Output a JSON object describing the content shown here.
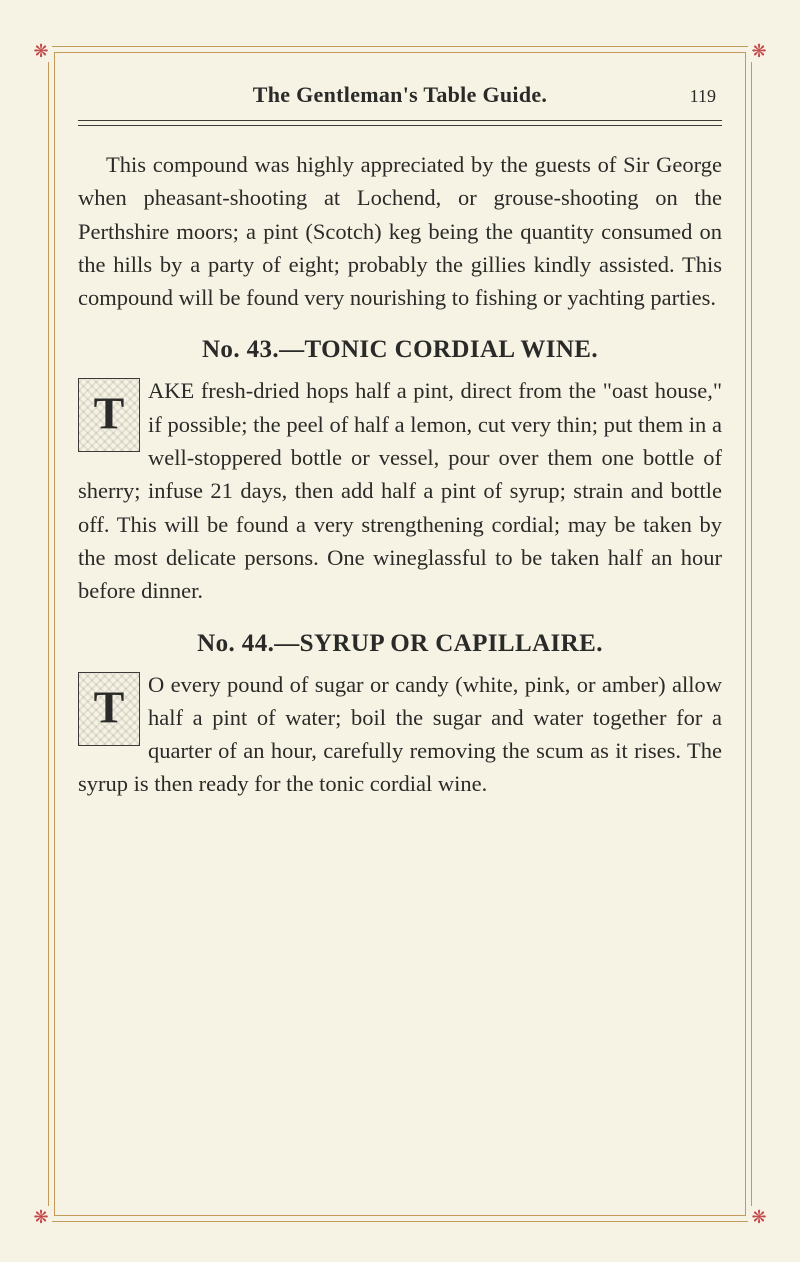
{
  "page": {
    "background_color": "#f7f3e4",
    "border_color": "#c49a5a",
    "ornament_color": "#c4484a",
    "text_color": "#2a2a28",
    "ornament_glyph": "❋"
  },
  "header": {
    "title": "The Gentleman's Table Guide.",
    "page_number": "119"
  },
  "intro_para": "This compound was highly appreciated by the guests of Sir George when pheasant-shooting at Lochend, or grouse-shooting on the Perthshire moors; a pint (Scotch) keg being the quantity consumed on the hills by a party of eight; probably the gillies kindly assisted. This compound will be found very nourishing to fishing or yachting parties.",
  "recipe43": {
    "title": "No. 43.—TONIC CORDIAL WINE.",
    "dropcap": "T",
    "lead": "AKE fresh-dried hops half a pint, direct from the \"oast house,\" if possible; the peel of half a lemon, cut very thin; put them in a well-stoppered bottle or vessel, pour over them one bottle of sherry; infuse 21 days, then add half a pint of syrup; strain and bottle off. This will be found a very strengthening cordial; may be taken by the most delicate persons. One wineglassful to be taken half an hour before dinner."
  },
  "recipe44": {
    "title": "No. 44.—SYRUP OR CAPILLAIRE.",
    "dropcap": "T",
    "lead": "O every pound of sugar or candy (white, pink, or amber) allow half a pint of water; boil the sugar and water together for a quarter of an hour, carefully removing the scum as it rises. The syrup is then ready for the tonic cordial wine."
  }
}
